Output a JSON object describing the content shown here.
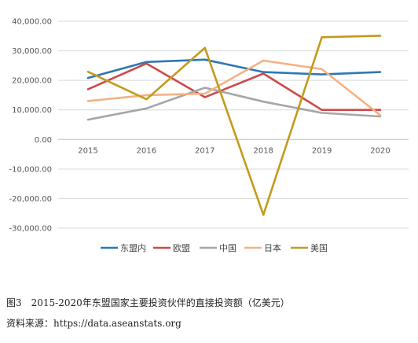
{
  "chart_data": {
    "type": "line",
    "categories": [
      "2015",
      "2016",
      "2017",
      "2018",
      "2019",
      "2020"
    ],
    "ylim": [
      -30000,
      40000
    ],
    "yticks": [
      40000,
      30000,
      20000,
      10000,
      0,
      -10000,
      -20000,
      -30000
    ],
    "ytick_labels": [
      "40,000.00",
      "30,000.00",
      "20,000.00",
      "10,000.00",
      "0.00",
      "-10,000.00",
      "-20,000.00",
      "-30,000.00"
    ],
    "grid": true,
    "legend": "bottom",
    "series": [
      {
        "name": "东盟内",
        "color": "#2e78b5",
        "values": [
          20800,
          26200,
          27000,
          22800,
          22000,
          22800
        ]
      },
      {
        "name": "欧盟",
        "color": "#cc4a4a",
        "values": [
          17000,
          25700,
          14300,
          22300,
          10000,
          10000
        ]
      },
      {
        "name": "中国",
        "color": "#a6a6a6",
        "values": [
          6700,
          10500,
          17500,
          12800,
          9000,
          7800
        ]
      },
      {
        "name": "日本",
        "color": "#f4b183",
        "values": [
          13000,
          15000,
          15500,
          26700,
          23800,
          8200
        ]
      },
      {
        "name": "美国",
        "color": "#c49a1c",
        "values": [
          22900,
          13600,
          31000,
          -25500,
          34600,
          35100
        ]
      }
    ]
  },
  "caption": {
    "figure": "图3　2015-2020年东盟国家主要投资伙伴的直接投资额（亿美元）",
    "source": "资料来源：https://data.aseanstats.org"
  }
}
